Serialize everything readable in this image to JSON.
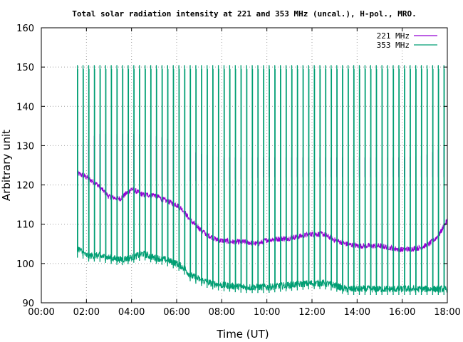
{
  "chart_data": {
    "type": "line",
    "title": "Total solar radiation intensity at 221 and 353 MHz (uncal.), H-pol., MRO.",
    "xlabel": "Time (UT)",
    "ylabel": "Arbitrary unit",
    "xlim": [
      0,
      18
    ],
    "ylim": [
      90,
      160
    ],
    "x_tick_labels": [
      "00:00",
      "02:00",
      "04:00",
      "06:00",
      "08:00",
      "10:00",
      "12:00",
      "14:00",
      "16:00",
      "18:00"
    ],
    "y_tick_labels": [
      "90",
      "100",
      "110",
      "120",
      "130",
      "140",
      "150",
      "160"
    ],
    "grid": true,
    "legend_position": "top-right",
    "series": [
      {
        "name": "221 MHz",
        "color": "#9400d3",
        "baseline": [
          [
            1.6,
            123
          ],
          [
            2.0,
            122
          ],
          [
            2.5,
            120
          ],
          [
            3.0,
            117
          ],
          [
            3.5,
            116.5
          ],
          [
            4.0,
            119
          ],
          [
            4.5,
            117.5
          ],
          [
            5.0,
            117.5
          ],
          [
            5.5,
            116
          ],
          [
            6.0,
            115
          ],
          [
            6.3,
            113.5
          ],
          [
            6.6,
            111
          ],
          [
            7.0,
            109
          ],
          [
            7.3,
            107.5
          ],
          [
            7.8,
            106
          ],
          [
            8.5,
            105.5
          ],
          [
            9.0,
            105.5
          ],
          [
            9.6,
            105
          ],
          [
            10.0,
            106
          ],
          [
            11.0,
            106.5
          ],
          [
            12.0,
            107.5
          ],
          [
            12.5,
            107.5
          ],
          [
            13.0,
            106
          ],
          [
            13.5,
            105
          ],
          [
            14.0,
            104.5
          ],
          [
            15.0,
            104.5
          ],
          [
            16.0,
            103.5
          ],
          [
            16.8,
            104
          ],
          [
            17.2,
            105
          ],
          [
            17.6,
            107
          ],
          [
            17.9,
            110
          ],
          [
            18.0,
            111
          ]
        ],
        "pulse_peaks": [
          [
            1.6,
            130
          ],
          [
            2.5,
            133
          ],
          [
            3.5,
            133
          ],
          [
            4.5,
            133
          ],
          [
            5.5,
            132
          ],
          [
            6.5,
            129
          ],
          [
            7.0,
            128
          ],
          [
            8.0,
            127
          ],
          [
            9.0,
            127
          ],
          [
            10.0,
            127
          ],
          [
            11.0,
            127
          ],
          [
            12.0,
            127
          ],
          [
            13.0,
            127
          ],
          [
            14.0,
            127
          ],
          [
            15.0,
            127
          ],
          [
            16.0,
            127
          ],
          [
            17.0,
            127.5
          ],
          [
            18.0,
            130
          ]
        ],
        "pulse_troughs": [
          [
            1.6,
            120
          ],
          [
            3.0,
            120
          ],
          [
            5.0,
            121
          ],
          [
            6.5,
            121
          ],
          [
            8.0,
            121
          ],
          [
            10.0,
            122
          ],
          [
            12.0,
            122
          ],
          [
            14.0,
            122
          ],
          [
            16.0,
            122
          ],
          [
            18.0,
            122
          ]
        ]
      },
      {
        "name": "353 MHz",
        "color": "#009e73",
        "baseline": [
          [
            1.6,
            104
          ],
          [
            2.0,
            102
          ],
          [
            2.5,
            102
          ],
          [
            3.0,
            101.5
          ],
          [
            3.5,
            101
          ],
          [
            4.0,
            101.5
          ],
          [
            4.5,
            102.5
          ],
          [
            5.0,
            101.5
          ],
          [
            5.5,
            101
          ],
          [
            6.0,
            100
          ],
          [
            6.3,
            99
          ],
          [
            6.6,
            97
          ],
          [
            7.0,
            96
          ],
          [
            7.5,
            95
          ],
          [
            8.0,
            94.5
          ],
          [
            9.0,
            94
          ],
          [
            10.0,
            94
          ],
          [
            11.0,
            94.5
          ],
          [
            12.0,
            95
          ],
          [
            12.5,
            95
          ],
          [
            13.0,
            94.5
          ],
          [
            13.5,
            93.5
          ],
          [
            14.0,
            93.5
          ],
          [
            15.0,
            93.5
          ],
          [
            16.0,
            93.5
          ],
          [
            17.0,
            93.5
          ],
          [
            18.0,
            93.5
          ]
        ],
        "pulse_peak": 150.5,
        "pulse_trough": 91,
        "pulse_interval_hours": 0.25,
        "pulse_start": 1.6,
        "pulse_end": 18.0
      }
    ]
  }
}
